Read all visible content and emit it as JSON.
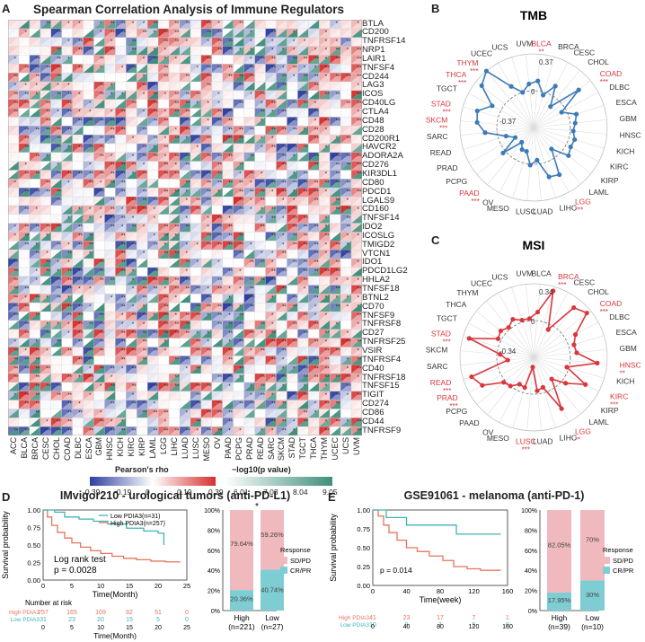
{
  "panel_a": {
    "label": "A",
    "title": "Spearman Correlation Analysis of Immune Regulators",
    "genes": [
      "BTLA",
      "CD200",
      "TNFRSF14",
      "NRP1",
      "LAIR1",
      "TNFSF4",
      "CD244",
      "LAG3",
      "ICOS",
      "CD40LG",
      "CTLA4",
      "CD48",
      "CD28",
      "CD200R1",
      "HAVCR2",
      "ADORA2A",
      "CD276",
      "KIR3DL1",
      "CD80",
      "PDCD1",
      "LGALS9",
      "CD160",
      "TNFSF14",
      "IDO2",
      "ICOSLG",
      "TMIGD2",
      "VTCN1",
      "IDO1",
      "PDCD1LG2",
      "HHLA2",
      "TNFSF18",
      "BTNL2",
      "CD70",
      "TNFSF9",
      "TNFRSF8",
      "CD27",
      "TNFRSF25",
      "VSIR",
      "TNFRSF4",
      "CD40",
      "TNFRSF18",
      "TNFSF15",
      "TIGIT",
      "CD274",
      "CD86",
      "CD44",
      "TNFRSF9"
    ],
    "cancers": [
      "ACC",
      "BLCA",
      "BRCA",
      "CESC",
      "CHOL",
      "COAD",
      "DLBC",
      "ESCA",
      "GBM",
      "HNSC",
      "KICH",
      "KIRC",
      "KIRP",
      "LAML",
      "LGG",
      "LIHC",
      "LUAD",
      "LUSC",
      "MESO",
      "OV",
      "PAAD",
      "PCPG",
      "PRAD",
      "READ",
      "SARC",
      "SKCM",
      "STAD",
      "TGCT",
      "THCA",
      "THYM",
      "UCEC",
      "UCS",
      "UVM"
    ],
    "rho_title": "Pearson's rho",
    "rho_ticks": [
      "-0.39",
      "-0.19",
      "0",
      "0.19",
      "0.39"
    ],
    "p_title": "−log10(p value)",
    "p_ticks": [
      "6.01",
      "7.03",
      "8.04",
      "9.05"
    ]
  },
  "panel_b": {
    "label": "B",
    "title": "TMB",
    "labels": [
      "BLCA",
      "BRCA",
      "CESC",
      "CHOL",
      "COAD",
      "DLBC",
      "ESCA",
      "GBM",
      "HNSC",
      "KICH",
      "KIRC",
      "KIRP",
      "LAML",
      "LGG",
      "LIHC",
      "LUAD",
      "LUSC",
      "MESO",
      "OV",
      "PAAD",
      "PCPG",
      "PRAD",
      "READ",
      "SARC",
      "SKCM",
      "STAD",
      "TGCT",
      "THCA",
      "THYM",
      "UCEC",
      "UCS",
      "UVM"
    ],
    "values": [
      0.1,
      -0.03,
      0.1,
      -0.1,
      0.22,
      -0.05,
      0.08,
      0.05,
      0.03,
      0.06,
      0.05,
      0.08,
      -0.09,
      0.17,
      0.15,
      -0.04,
      0.01,
      -0.12,
      -0.12,
      -0.18,
      0.03,
      -0.16,
      -0.08,
      0.12,
      0.2,
      0.22,
      0.1,
      0.3,
      0.37,
      0.1,
      0.0,
      0.07
    ],
    "red": [
      "BLCA",
      "COAD",
      "LGG",
      "PAAD",
      "SKCM",
      "STAD",
      "THCA",
      "THYM"
    ],
    "stars": {
      "BLCA": "**",
      "COAD": "***",
      "LGG": "***",
      "PAAD": "***",
      "SKCM": "***",
      "STAD": "***",
      "THCA": "***",
      "THYM": "***"
    },
    "rmax_label": "0.37",
    "zero_label": "0",
    "rmin_label": "-0.37",
    "color": "#3d7ab8"
  },
  "panel_c": {
    "label": "C",
    "title": "MSI",
    "labels": [
      "BLCA",
      "BRCA",
      "CESC",
      "CHOL",
      "COAD",
      "DLBC",
      "ESCA",
      "GBM",
      "HNSC",
      "KICH",
      "KIRC",
      "KIRP",
      "LAML",
      "LGG",
      "LIHC",
      "LUAD",
      "LUSC",
      "MESO",
      "OV",
      "PAAD",
      "PCPG",
      "PRAD",
      "READ",
      "SARC",
      "SKCM",
      "STAD",
      "TGCT",
      "THCA",
      "THYM",
      "UCEC",
      "UCS",
      "UVM"
    ],
    "values": [
      0.08,
      0.3,
      -0.05,
      0.25,
      0.3,
      0.1,
      0.05,
      0.06,
      0.25,
      -0.02,
      0.2,
      0.04,
      -0.08,
      0.2,
      -0.05,
      -0.03,
      -0.25,
      -0.05,
      -0.06,
      0.0,
      0.02,
      0.2,
      0.26,
      -0.1,
      -0.03,
      0.28,
      0.03,
      0.05,
      0.02,
      0.06,
      0.02,
      0.02
    ],
    "red": [
      "BRCA",
      "COAD",
      "HNSC",
      "KIRC",
      "LGG",
      "LUSC",
      "PRAD",
      "READ",
      "STAD"
    ],
    "stars": {
      "BRCA": "***",
      "COAD": "***",
      "HNSC": "**",
      "KIRC": "***",
      "LGG": "**",
      "LUSC": "***",
      "PRAD": "***",
      "READ": "***",
      "STAD": "***"
    },
    "rmax_label": "0.34",
    "zero_label": "0",
    "rmin_label": "-0.34",
    "color": "#d9363e"
  },
  "panel_d": {
    "label": "D",
    "title": "IMvigor210 - urological tumors (anti-PD-L1)",
    "km": {
      "ylabel": "Survival probability",
      "xlabel": "Time(Month)",
      "yticks": [
        "0.00",
        "0.25",
        "0.50",
        "0.75",
        "1.00"
      ],
      "xticks": [
        "0",
        "5",
        "10",
        "15",
        "20",
        "25"
      ],
      "xmax": 25,
      "legend_low": "Low PDIA3(n=31)",
      "legend_high": "High PDIA3(n=257)",
      "test": "Log rank test",
      "pvalue": "p = 0.0028",
      "risk_title": "Number at risk",
      "risk_high_label": "High PDIA3",
      "risk_low_label": "Low PDIA3",
      "risk_high": [
        "257",
        "165",
        "109",
        "82",
        "51",
        "0"
      ],
      "risk_low": [
        "31",
        "23",
        "20",
        "15",
        "5",
        "0"
      ]
    },
    "bar": {
      "significance": "*",
      "yticks": [
        "0%",
        "20%",
        "40%",
        "60%",
        "80%",
        "100%"
      ],
      "groups": [
        {
          "name": "High",
          "n": "(n=221)",
          "sdpd": 79.64,
          "crpr": 20.36,
          "sdpd_label": "79.64%",
          "crpr_label": "20.36%"
        },
        {
          "name": "Low",
          "n": "(n=27)",
          "sdpd": 59.26,
          "crpr": 40.74,
          "sdpd_label": "59.26%",
          "crpr_label": "40.74%"
        }
      ],
      "legend_title": "Response",
      "legend_sdpd": "SD/PD",
      "legend_crpr": "CR/PR"
    }
  },
  "panel_e": {
    "label": "E",
    "title": "GSE91061 - melanoma (anti-PD-1)",
    "km": {
      "ylabel": "Survival probability",
      "xlabel": "Time(week)",
      "yticks": [
        "0.00",
        "0.25",
        "0.50",
        "0.75",
        "1.00"
      ],
      "xticks": [
        "0",
        "40",
        "80",
        "120",
        "160"
      ],
      "xmax": 160,
      "pvalue": "p = 0.014",
      "risk_high_label": "High PDIA3",
      "risk_low_label": "Low PDIA3",
      "risk_high": [
        "41",
        "23",
        "17",
        "7",
        "1"
      ],
      "risk_low": [
        "10",
        "9",
        "7",
        "5",
        "0"
      ]
    },
    "bar": {
      "yticks": [
        "0%",
        "20%",
        "40%",
        "60%",
        "80%",
        "100%"
      ],
      "groups": [
        {
          "name": "High",
          "n": "(n=39)",
          "sdpd": 82.05,
          "crpr": 17.95,
          "sdpd_label": "82.05%",
          "crpr_label": "17.95%"
        },
        {
          "name": "Low",
          "n": "(n=10)",
          "sdpd": 70,
          "crpr": 30,
          "sdpd_label": "70%",
          "crpr_label": "30%"
        }
      ],
      "legend_title": "Response",
      "legend_sdpd": "SD/PD",
      "legend_crpr": "CR/PR"
    }
  },
  "colors": {
    "km_low": "#3fb3b8",
    "km_high": "#e8735e",
    "bar_sdpd": "#f0b9bd",
    "bar_crpr": "#7ecdd3",
    "heat_neg": "#2e3f9e",
    "heat_pos": "#d62f2f",
    "heat_sig": "#3f8f7c"
  },
  "chart_data": [
    {
      "type": "heatmap",
      "title": "Spearman Correlation Analysis of Immune Regulators",
      "note": "47 immune regulators x 33 cancer types; upper triangle Pearson's rho, lower triangle -log10(p value)",
      "rho_range": [
        -0.39,
        0.39
      ],
      "p_range": [
        6.01,
        9.05
      ]
    },
    {
      "type": "radar",
      "title": "TMB",
      "range": [
        -0.37,
        0.37
      ]
    },
    {
      "type": "radar",
      "title": "MSI",
      "range": [
        -0.34,
        0.34
      ]
    },
    {
      "type": "line",
      "title": "IMvigor210 survival",
      "xlabel": "Time(Month)",
      "ylabel": "Survival probability",
      "series": [
        {
          "name": "Low PDIA3(n=31)"
        },
        {
          "name": "High PDIA3(n=257)"
        }
      ]
    },
    {
      "type": "bar",
      "title": "IMvigor210 response",
      "categories": [
        "High",
        "Low"
      ],
      "series": [
        {
          "name": "SD/PD",
          "values": [
            79.64,
            59.26
          ]
        },
        {
          "name": "CR/PR",
          "values": [
            20.36,
            40.74
          ]
        }
      ]
    },
    {
      "type": "line",
      "title": "GSE91061 survival",
      "xlabel": "Time(week)",
      "ylabel": "Survival probability",
      "series": [
        {
          "name": "High PDIA3"
        },
        {
          "name": "Low PDIA3"
        }
      ]
    },
    {
      "type": "bar",
      "title": "GSE91061 response",
      "categories": [
        "High",
        "Low"
      ],
      "series": [
        {
          "name": "SD/PD",
          "values": [
            82.05,
            70
          ]
        },
        {
          "name": "CR/PR",
          "values": [
            17.95,
            30
          ]
        }
      ]
    }
  ]
}
